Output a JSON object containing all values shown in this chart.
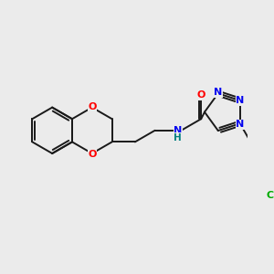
{
  "background_color": "#ebebeb",
  "bond_color": "#1a1a1a",
  "atom_colors": {
    "O": "#ff0000",
    "N": "#0000ee",
    "Cl": "#00aa00",
    "NH": "#008080"
  },
  "lw": 1.4
}
